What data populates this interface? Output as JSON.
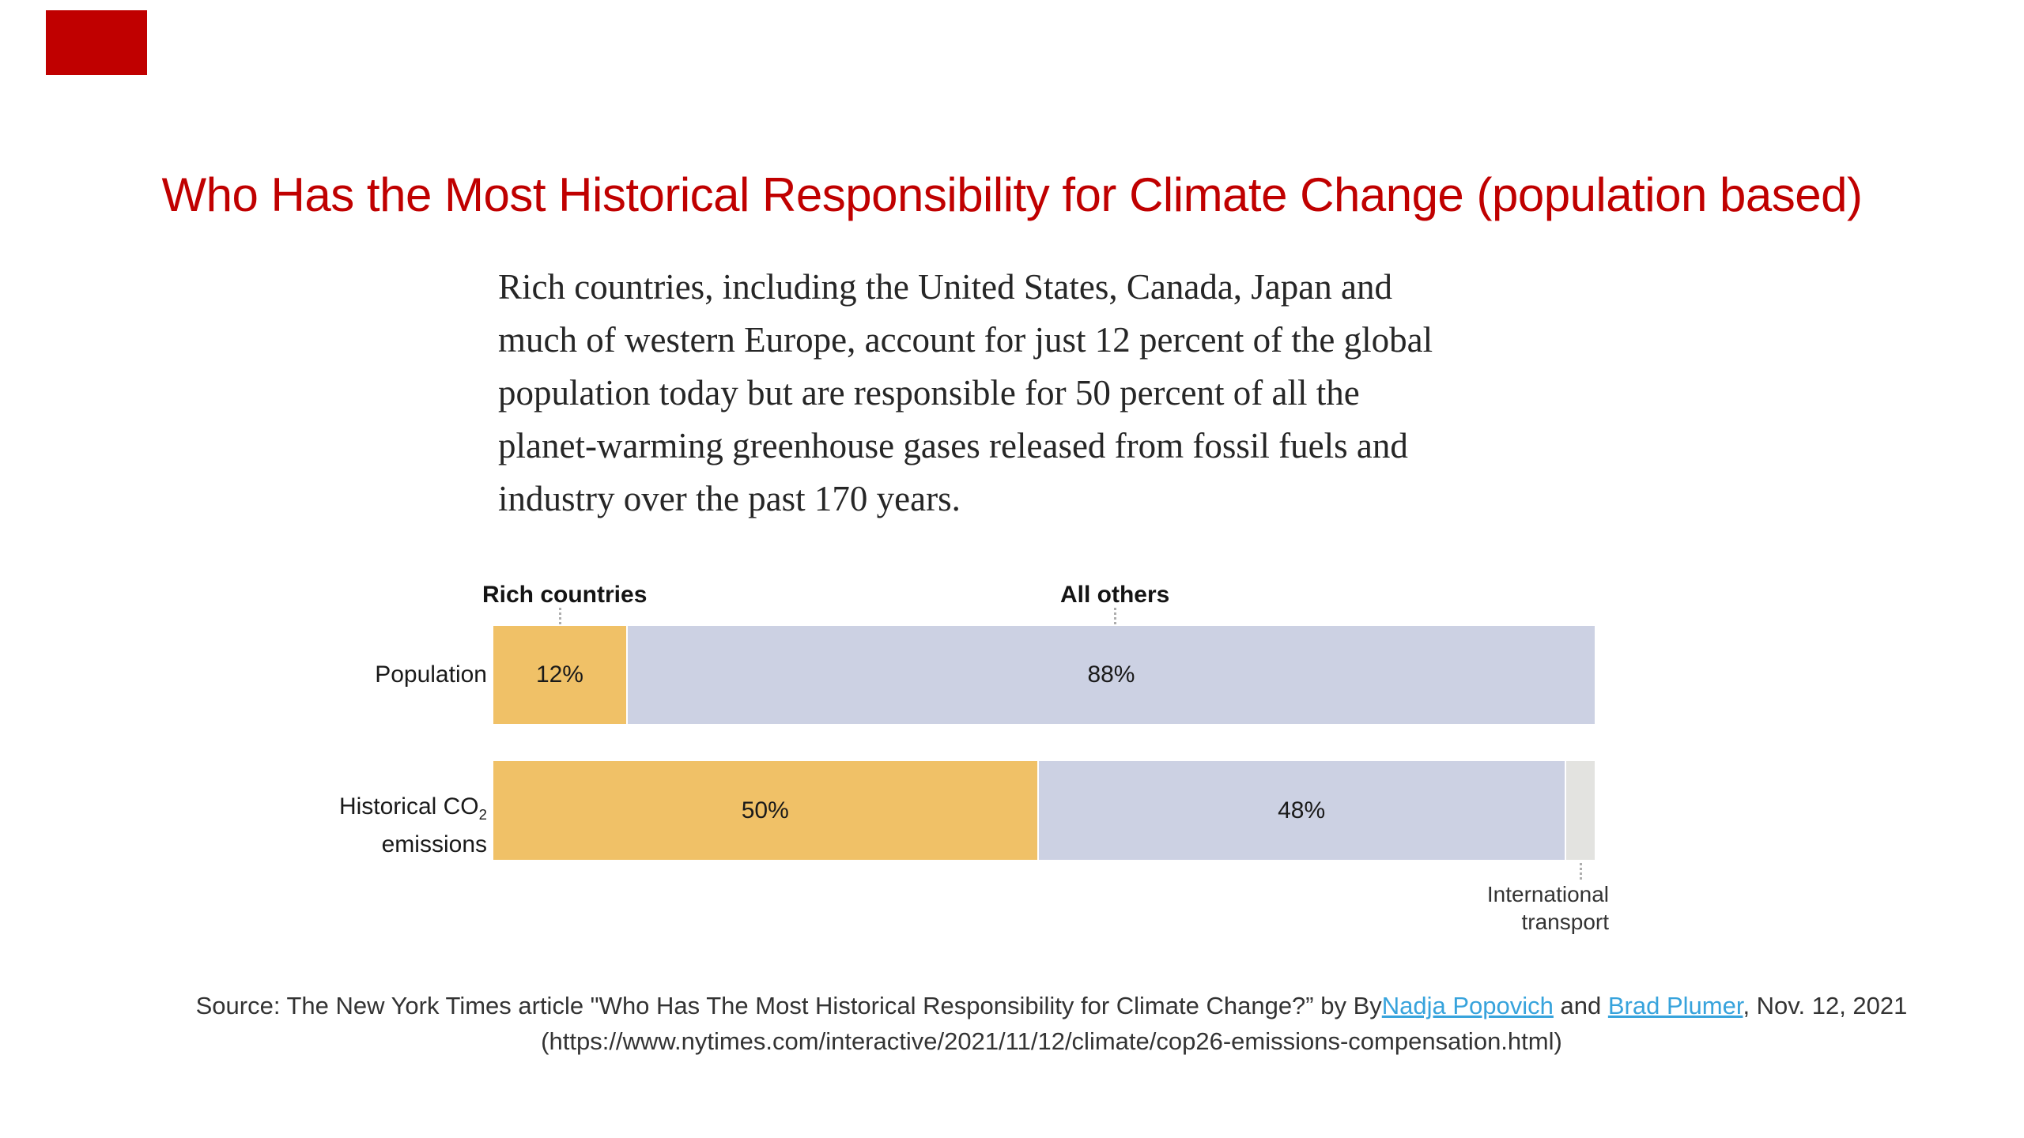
{
  "page": {
    "background": "#FFFFFF",
    "accent_red": "#C00000"
  },
  "title": {
    "text": "Who Has the Most Historical Responsibility for Climate Change (population based)",
    "color": "#C00000"
  },
  "intro": {
    "lines": [
      "Rich countries, including the United States, Canada, Japan and",
      "much of western Europe, account for just 12 percent of the global",
      "population today but are responsible for 50 percent of all the",
      "planet-warming greenhouse gases released from fossil fuels and",
      "industry over the past 170 years."
    ]
  },
  "chart": {
    "group_labels": {
      "rich": "Rich countries",
      "others": "All others"
    },
    "rows": [
      {
        "label": "Population",
        "segments": [
          {
            "name": "Rich countries",
            "value": "12%",
            "width": "12.2%",
            "color": "#F0C167"
          },
          {
            "name": "All others",
            "value": "88%",
            "width": "87.8%",
            "color": "#CCD1E3"
          }
        ]
      },
      {
        "label_line1": "Historical CO",
        "label_sub": "2",
        "label_line2": "emissions",
        "segments": [
          {
            "name": "Rich countries",
            "value": "50%",
            "width": "49.5%",
            "color": "#F0C167"
          },
          {
            "name": "All others",
            "value": "48%",
            "width": "47.9%",
            "color": "#CCD1E3"
          },
          {
            "name": "International transport",
            "value": "",
            "width": "2.6%",
            "color": "#E3E3E0"
          }
        ]
      }
    ],
    "intl_label_line1": "International",
    "intl_label_line2": "transport"
  },
  "chart_data": {
    "type": "bar",
    "subtype": "horizontal-stacked",
    "categories": [
      "Population",
      "Historical CO2 emissions"
    ],
    "series": [
      {
        "name": "Rich countries",
        "values": [
          12,
          50
        ],
        "color": "#F0C167"
      },
      {
        "name": "All others",
        "values": [
          88,
          48
        ],
        "color": "#CCD1E3"
      },
      {
        "name": "International transport",
        "values": [
          0,
          2
        ],
        "color": "#E3E3E0"
      }
    ],
    "value_labels": [
      [
        "12%",
        "88%",
        ""
      ],
      [
        "50%",
        "48%",
        ""
      ]
    ],
    "unit": "percent",
    "xlim": [
      0,
      100
    ],
    "grid": false,
    "legend_position": "labels-above-first-bar",
    "annotations": [
      "Rich countries",
      "All others",
      "International transport"
    ]
  },
  "source": {
    "line1_prefix": "Source: The New York Times article \"Who Has The Most Historical Responsibility for Climate Change?” by By",
    "link1": "Nadja Popovich",
    "line1_mid": " and ",
    "link2": "Brad Plumer",
    "line1_suffix": ", Nov. 12, 2021",
    "line2": "(https://www.nytimes.com/interactive/2021/11/12/climate/cop26-emissions-compensation.html)",
    "link_color": "#37A3DC"
  }
}
